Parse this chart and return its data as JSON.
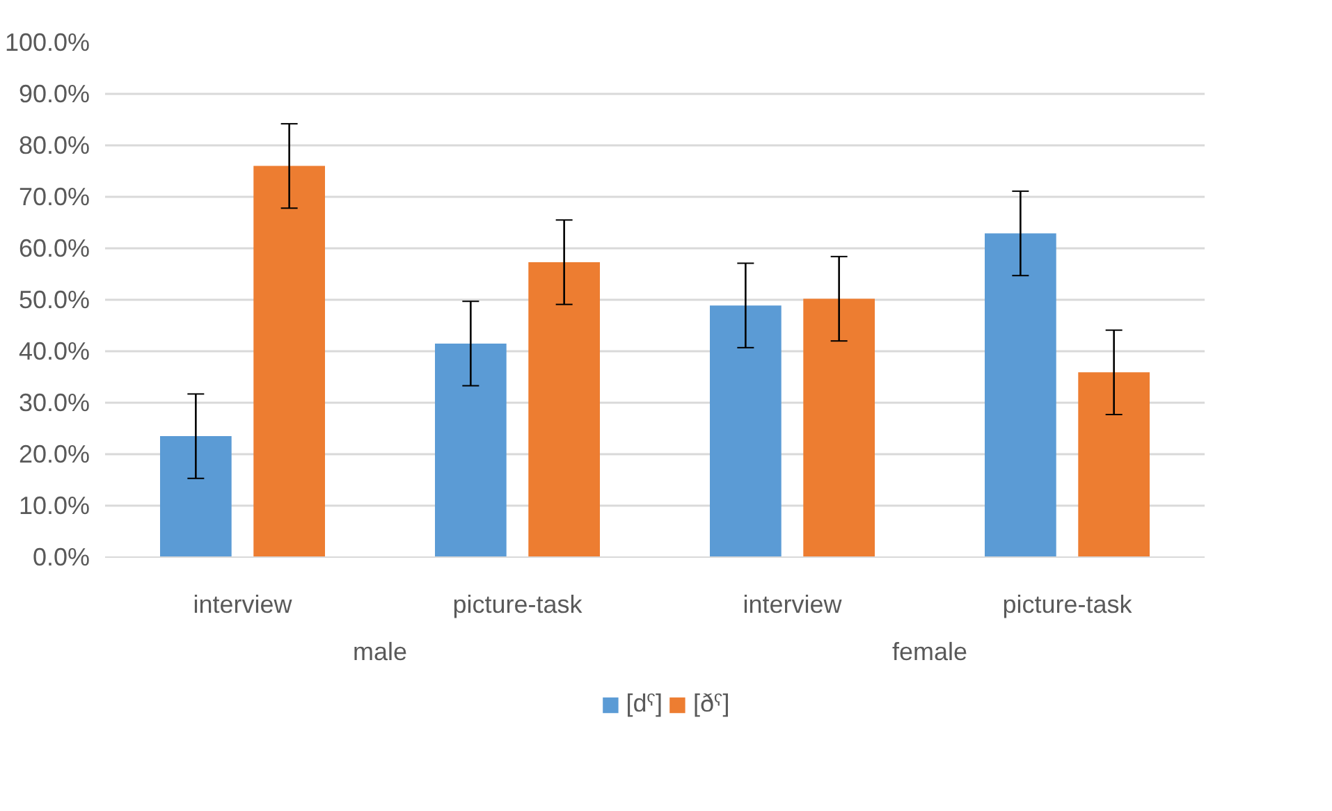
{
  "chart_data": {
    "type": "bar",
    "categories": [
      "interview",
      "picture-task",
      "interview",
      "picture-task"
    ],
    "annotations": [
      "male",
      "female"
    ],
    "series": [
      {
        "name": "[dˤ]",
        "color": "#5b9bd5",
        "values": [
          23.5,
          41.5,
          48.9,
          62.9
        ],
        "errors": [
          8.2,
          8.2,
          8.2,
          8.2
        ]
      },
      {
        "name": "[ðˤ]",
        "color": "#ed7d31",
        "values": [
          76.0,
          57.3,
          50.2,
          35.9
        ],
        "errors": [
          8.2,
          8.2,
          8.2,
          8.2
        ]
      }
    ],
    "ylim": [
      0,
      100
    ],
    "yticks": [
      {
        "value": 0,
        "label": "0.0%"
      },
      {
        "value": 10,
        "label": "10.0%"
      },
      {
        "value": 20,
        "label": "20.0%"
      },
      {
        "value": 30,
        "label": "30.0%"
      },
      {
        "value": 40,
        "label": "40.0%"
      },
      {
        "value": 50,
        "label": "50.0%"
      },
      {
        "value": 60,
        "label": "60.0%"
      },
      {
        "value": 70,
        "label": "70.0%"
      },
      {
        "value": 80,
        "label": "80.0%"
      },
      {
        "value": 90,
        "label": "90.0%"
      },
      {
        "value": 100,
        "label": "100.0%"
      }
    ],
    "grid": "y",
    "legend": "bottom"
  }
}
